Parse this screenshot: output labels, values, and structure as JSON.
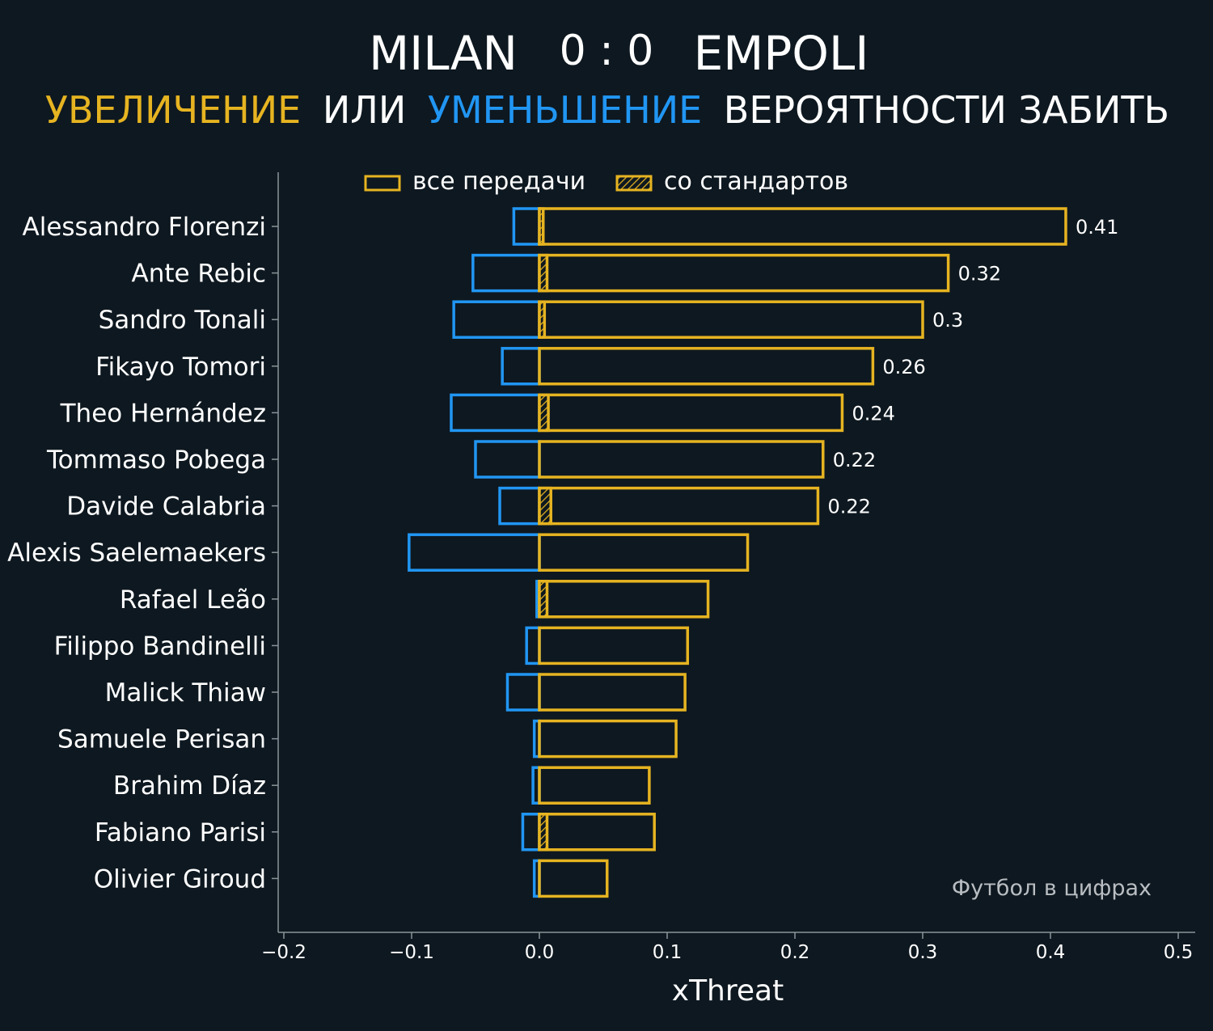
{
  "title": {
    "home": "MILAN",
    "score": "0 : 0",
    "away": "EMPOLI"
  },
  "subtitle": {
    "increase": "УВЕЛИЧЕНИЕ",
    "or": "ИЛИ",
    "decrease": "УМЕНЬШЕНИЕ",
    "rest": "ВЕРОЯТНОСТИ ЗАБИТЬ"
  },
  "legend": {
    "all_passes": "все передачи",
    "set_pieces": "со стандартов"
  },
  "watermark": "Футбол в цифрах",
  "colors": {
    "background": "#0e1820",
    "positive": "#e6b421",
    "negative": "#2196f3",
    "axis": "#8a9499",
    "text": "#ffffff"
  },
  "chart_data": {
    "type": "bar",
    "orientation": "horizontal",
    "xlabel": "xThreat",
    "xlim": [
      -0.2,
      0.5
    ],
    "xticks": [
      -0.2,
      -0.1,
      0.0,
      0.1,
      0.2,
      0.3,
      0.4,
      0.5
    ],
    "xtick_labels": [
      "−0.2",
      "−0.1",
      "0.0",
      "0.1",
      "0.2",
      "0.3",
      "0.4",
      "0.5"
    ],
    "categories": [
      "Alessandro Florenzi",
      "Ante Rebic",
      "Sandro Tonali",
      "Fikayo Tomori",
      "Theo Hernández",
      "Tommaso Pobega",
      "Davide Calabria",
      "Alexis Saelemaekers",
      "Rafael Leão",
      "Filippo Bandinelli",
      "Malick Thiaw",
      "Samuele Perisan",
      "Brahim Díaz",
      "Fabiano Parisi",
      "Olivier Giroud"
    ],
    "series": [
      {
        "name": "все передачи (увеличение)",
        "values": [
          0.412,
          0.32,
          0.3,
          0.261,
          0.237,
          0.222,
          0.218,
          0.163,
          0.132,
          0.116,
          0.114,
          0.107,
          0.086,
          0.09,
          0.053
        ]
      },
      {
        "name": "все передачи (уменьшение)",
        "values": [
          -0.02,
          -0.052,
          -0.067,
          -0.029,
          -0.069,
          -0.05,
          -0.031,
          -0.102,
          -0.002,
          -0.01,
          -0.025,
          -0.004,
          -0.005,
          -0.013,
          -0.004
        ]
      },
      {
        "name": "со стандартов",
        "values": [
          0.003,
          0.006,
          0.004,
          0.0,
          0.007,
          0.0,
          0.009,
          0.0,
          0.006,
          0.0,
          0.0,
          0.0,
          0.0,
          0.006,
          0.0
        ]
      }
    ],
    "data_labels": [
      "0.41",
      "0.32",
      "0.3",
      "0.26",
      "0.24",
      "0.22",
      "0.22",
      "",
      "",
      "",
      "",
      "",
      "",
      "",
      ""
    ]
  }
}
